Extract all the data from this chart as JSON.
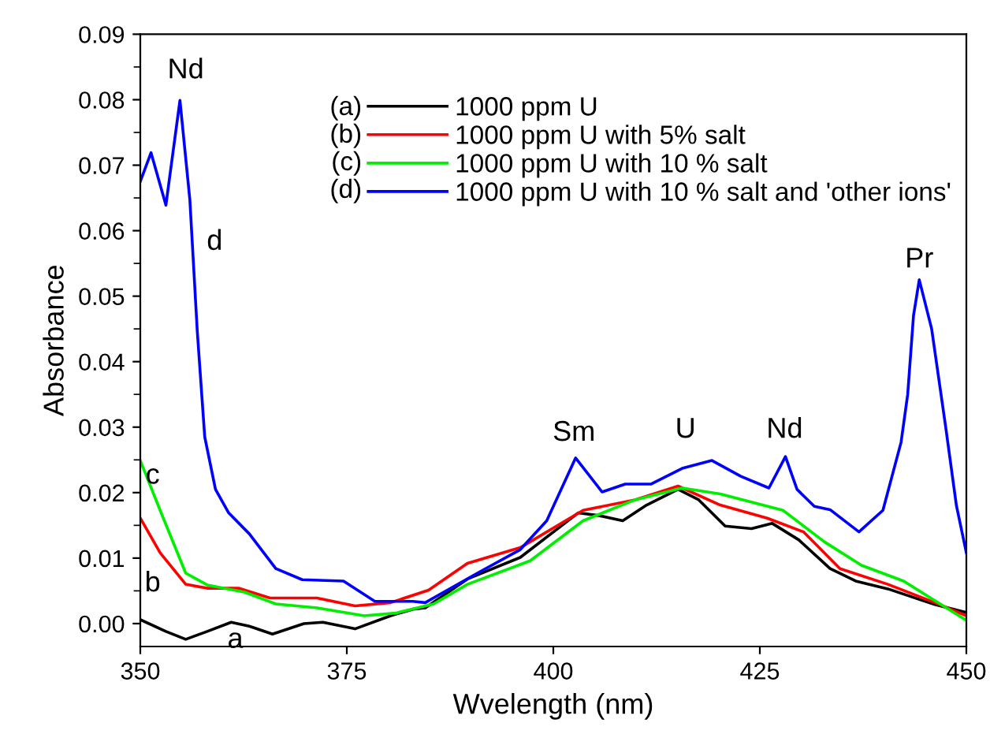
{
  "chart_data": {
    "type": "line",
    "xlabel": "Wvelength (nm)",
    "ylabel": "Absorbance",
    "xlim": [
      350,
      450
    ],
    "xticks": [
      350,
      375,
      400,
      425,
      450
    ],
    "ylim": [
      -0.0035,
      0.09
    ],
    "yticks": [
      {
        "value": 0,
        "label": "0.00"
      },
      {
        "value": 0.01,
        "label": "0.01"
      },
      {
        "value": 0.02,
        "label": "0.02"
      },
      {
        "value": 0.03,
        "label": "0.03"
      },
      {
        "value": 0.04,
        "label": "0.04"
      },
      {
        "value": 0.05,
        "label": "0.05"
      },
      {
        "value": 0.06,
        "label": "0.06"
      },
      {
        "value": 0.07,
        "label": "0.07"
      },
      {
        "value": 0.08,
        "label": "0.08"
      },
      {
        "value": 0.09,
        "label": "0.09"
      }
    ],
    "grid": false,
    "legend": "top",
    "line_style": "solid",
    "marker": "none",
    "series": [
      {
        "name": "1000 ppm U",
        "color": "#000000",
        "x": [
          350,
          353.1,
          355.5,
          358.1,
          361,
          363.2,
          366,
          369.8,
          372.1,
          376,
          380.3,
          383,
          384.5,
          389.6,
          396,
          403,
          405.5,
          408.4,
          411.3,
          415.1,
          417.6,
          420.8,
          424,
          426.5,
          429.7,
          433.5,
          436.6,
          440.5,
          446.2,
          450
        ],
        "values": [
          0.0006,
          -0.0012,
          -0.0024,
          -0.0012,
          0.0002,
          -0.0004,
          -0.0016,
          0,
          0.0002,
          -0.0008,
          0.0012,
          0.0022,
          0.0024,
          0.0068,
          0.0101,
          0.0169,
          0.0165,
          0.0157,
          0.0181,
          0.0205,
          0.0189,
          0.0149,
          0.0145,
          0.0153,
          0.0128,
          0.0084,
          0.0065,
          0.0053,
          0.0029,
          0.0017
        ]
      },
      {
        "name": "1000 ppm U with 5% salt",
        "color": "#ff0000",
        "x": [
          350,
          352.4,
          355.5,
          358.1,
          361.9,
          365.7,
          371.4,
          376,
          380.3,
          384.9,
          389.6,
          396,
          403.6,
          409.9,
          415.1,
          420.2,
          425.9,
          430.3,
          434.7,
          440.5,
          446.2,
          450
        ],
        "values": [
          0.0161,
          0.0108,
          0.006,
          0.0054,
          0.0054,
          0.0039,
          0.0039,
          0.0027,
          0.0032,
          0.0051,
          0.0092,
          0.0116,
          0.0173,
          0.0189,
          0.021,
          0.0181,
          0.0161,
          0.014,
          0.0084,
          0.006,
          0.0032,
          0.0012
        ]
      },
      {
        "name": "1000 ppm U with 10 % salt",
        "color": "#00ee00",
        "x": [
          350,
          352.4,
          355.5,
          358.1,
          362.6,
          366.4,
          371.4,
          377.1,
          380.9,
          385.5,
          389.6,
          397.2,
          403.6,
          409.9,
          415.6,
          420.2,
          427.8,
          432.8,
          437.3,
          442.4,
          450
        ],
        "values": [
          0.0249,
          0.0173,
          0.0077,
          0.0059,
          0.0048,
          0.003,
          0.0024,
          0.0012,
          0.0016,
          0.003,
          0.006,
          0.0096,
          0.0157,
          0.0189,
          0.0207,
          0.0198,
          0.0173,
          0.0125,
          0.0089,
          0.0065,
          0.0005
        ]
      },
      {
        "name": "1000 ppm U with 10 % salt and 'other ions'",
        "color": "#0000ff",
        "x": [
          350,
          351.3,
          353.1,
          354.8,
          356,
          356.9,
          357.8,
          359.1,
          360.7,
          363.2,
          366.4,
          369.6,
          374.6,
          378.4,
          383,
          384.5,
          390.8,
          396,
          399.2,
          402.7,
          405.9,
          408.7,
          411.8,
          415.6,
          419.2,
          422.7,
          426.1,
          428.1,
          429.5,
          431.6,
          433.5,
          437,
          439.9,
          442.1,
          442.9,
          443.6,
          444.3,
          445.8,
          447.5,
          448.8,
          450
        ],
        "values": [
          0.0675,
          0.0719,
          0.0639,
          0.0799,
          0.0647,
          0.0446,
          0.0285,
          0.0205,
          0.0169,
          0.0137,
          0.0084,
          0.0067,
          0.0065,
          0.0034,
          0.0034,
          0.0032,
          0.0077,
          0.0113,
          0.0157,
          0.0253,
          0.0201,
          0.0213,
          0.0213,
          0.0237,
          0.0249,
          0.0225,
          0.0207,
          0.0255,
          0.0205,
          0.0179,
          0.0174,
          0.014,
          0.0173,
          0.0277,
          0.035,
          0.047,
          0.0525,
          0.045,
          0.03,
          0.018,
          0.0108
        ]
      }
    ],
    "annotations": [
      "(a)",
      "(b)",
      "(c)",
      "(d)",
      "Nd",
      "d",
      "c",
      "b",
      "a",
      "Sm",
      "U",
      "Nd",
      "Pr"
    ]
  }
}
